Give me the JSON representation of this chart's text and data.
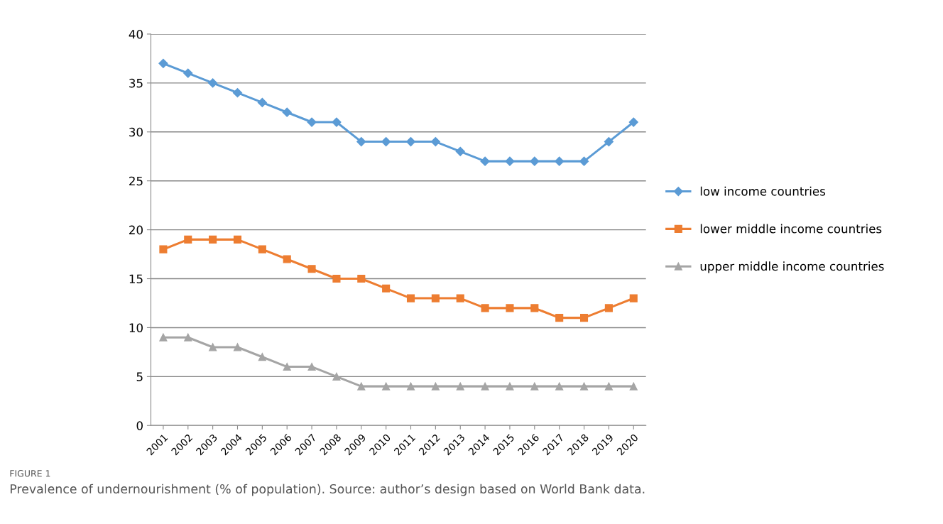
{
  "chart_data": {
    "type": "line",
    "categories": [
      "2001",
      "2002",
      "2003",
      "2004",
      "2005",
      "2006",
      "2007",
      "2008",
      "2009",
      "2010",
      "2011",
      "2012",
      "2013",
      "2014",
      "2015",
      "2016",
      "2017",
      "2018",
      "2019",
      "2020"
    ],
    "series": [
      {
        "name": "low income countries",
        "color": "#5b9bd5",
        "marker": "diamond",
        "values": [
          37,
          36,
          35,
          34,
          33,
          32,
          31,
          31,
          29,
          29,
          29,
          29,
          28,
          27,
          27,
          27,
          27,
          27,
          29,
          31
        ]
      },
      {
        "name": "lower middle income countries",
        "color": "#ed7d31",
        "marker": "square",
        "values": [
          18,
          19,
          19,
          19,
          18,
          17,
          16,
          15,
          15,
          14,
          13,
          13,
          13,
          12,
          12,
          12,
          11,
          11,
          12,
          13
        ]
      },
      {
        "name": "upper middle income countries",
        "color": "#a5a5a5",
        "marker": "triangle",
        "values": [
          9,
          9,
          8,
          8,
          7,
          6,
          6,
          5,
          4,
          4,
          4,
          4,
          4,
          4,
          4,
          4,
          4,
          4,
          4,
          4
        ]
      }
    ],
    "ylim": [
      0,
      40
    ],
    "yticks": [
      0,
      5,
      10,
      15,
      20,
      25,
      30,
      35,
      40
    ],
    "grid": "y",
    "legend": "right",
    "line_style": "solid",
    "annotations": [
      "FIGURE 1",
      "Prevalence of undernourishment (% of population). Source: author’s design based on World Bank data."
    ]
  }
}
